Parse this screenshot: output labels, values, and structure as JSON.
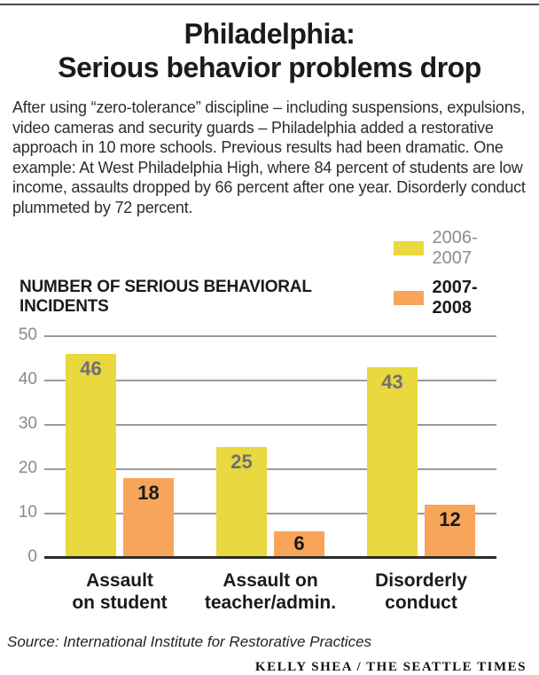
{
  "header": {
    "title_lines": [
      "Philadelphia:",
      "Serious behavior problems drop"
    ],
    "intro": "After using “zero-tolerance” discipline – including suspensions, expulsions, video cameras and  security guards – Philadelphia added a restorative approach in 10 more schools. Previous results had been dramatic. One example: At West Philadelphia High, where 84 percent of students are low income, assaults dropped by 66 percent after one year. Disorderly conduct plummeted by 72 percent."
  },
  "chart_data": {
    "type": "bar",
    "title": "NUMBER OF SERIOUS BEHAVIORAL INCIDENTS",
    "categories": [
      [
        "Assault",
        "on student"
      ],
      [
        "Assault on",
        "teacher/admin."
      ],
      [
        "Disorderly",
        "conduct"
      ]
    ],
    "series": [
      {
        "name": "2006-2007",
        "color": "#E9D83E",
        "value_label_color": "#6E7076",
        "legend_label_color": "#8D8D8D",
        "values": [
          46,
          25,
          43
        ]
      },
      {
        "name": "2007-2008",
        "color": "#F7A55B",
        "value_label_color": "#1A1A1A",
        "legend_label_color": "#1A1A1A",
        "values": [
          18,
          6,
          12
        ]
      }
    ],
    "ylim": [
      0,
      50
    ],
    "yticks": [
      0,
      10,
      20,
      30,
      40,
      50
    ],
    "grid": "horizontal",
    "gridline_color": "#9B9B9B",
    "baseline_color": "#2B2B2B",
    "legend_position": "top-right"
  },
  "footer": {
    "source": "Source: International Institute for Restorative Practices",
    "credit": "KELLY SHEA / THE SEATTLE TIMES"
  }
}
